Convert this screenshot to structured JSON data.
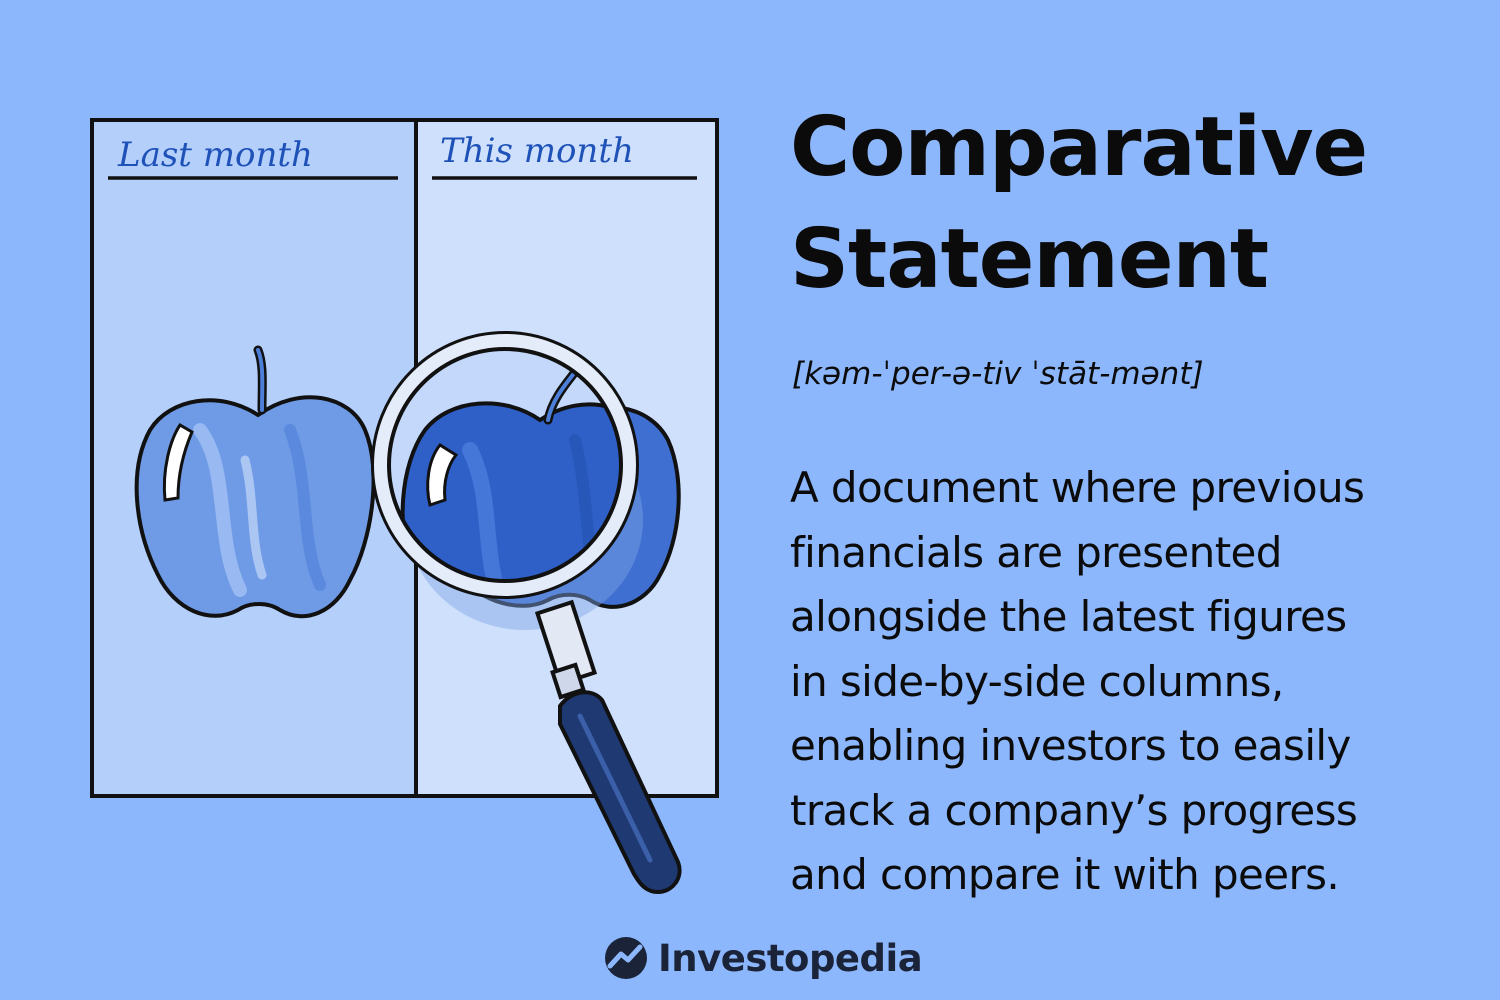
{
  "illustration": {
    "left_column_label": "Last month",
    "right_column_label": "This month"
  },
  "heading": {
    "title_line1": "Comparative",
    "title_line2": "Statement",
    "pronunciation": "[kəm-ˈper-ə-tiv ˈstāt-mənt]"
  },
  "definition": {
    "lines": [
      "A document where previous",
      "financials are presented",
      "alongside the latest figures",
      "in side-by-side columns,",
      "enabling investors to easily",
      "track a company’s progress",
      "and compare it with peers."
    ]
  },
  "brand": {
    "name": "Investopedia"
  },
  "colors": {
    "background": "#8db7fc",
    "left_column": "#b3cffa",
    "right_column": "#cfe0fc",
    "apple_light": "#6e9ae6",
    "apple_dark": "#2f60c8",
    "handwriting": "#1f52b8",
    "text": "#0b0b0b"
  }
}
